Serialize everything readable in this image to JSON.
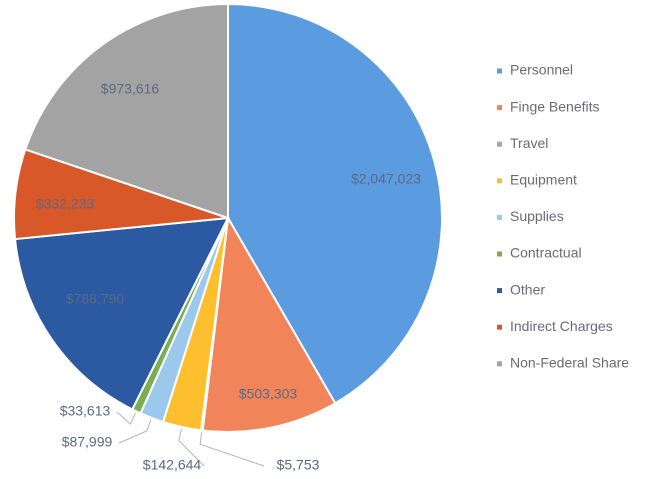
{
  "chart_data": {
    "type": "pie",
    "categories": [
      "Personnel",
      "Finge Benefits",
      "Travel",
      "Equipment",
      "Supplies",
      "Contractual",
      "Other",
      "Indirect Charges",
      "Non-Federal Share"
    ],
    "values": [
      2047023,
      503303,
      5753,
      142644,
      87999,
      33613,
      788790,
      332233,
      973616
    ],
    "value_labels": [
      "$2,047,023",
      "$503,303",
      "$5,753",
      "$142,644",
      "$87,999",
      "$33,613",
      "$788,790",
      "$332,233",
      "$973,616"
    ],
    "colors": [
      "#5b9be0",
      "#f2845a",
      "#a9a9a9",
      "#fdbf2d",
      "#9cc8ec",
      "#7aae55",
      "#2b5aa3",
      "#d9582a",
      "#a3a3a3"
    ],
    "legend": "right"
  }
}
